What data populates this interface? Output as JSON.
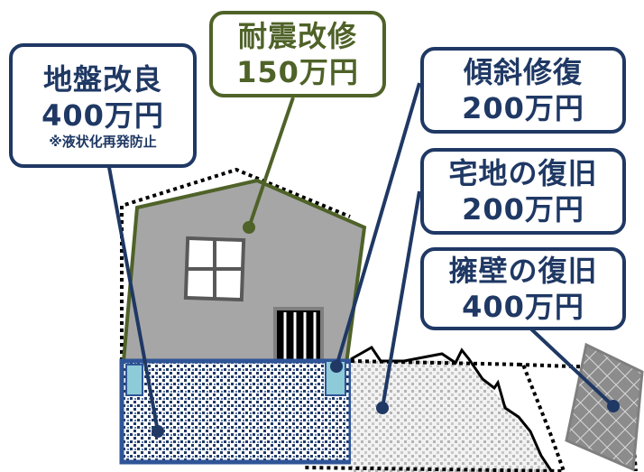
{
  "colors": {
    "navy": "#1f3864",
    "olive": "#4f6228",
    "house_wall": "#a6a6a6",
    "water_blue": "#8ecbd8",
    "soil_gray": "#d0d0d0"
  },
  "labels": {
    "ground": {
      "line1": "地盤改良",
      "line2": "400万円",
      "note": "※液状化再発防止"
    },
    "seismic": {
      "line1": "耐震改修",
      "line2": "150万円"
    },
    "tilt": {
      "line1": "傾斜修復",
      "line2": "200万円"
    },
    "land": {
      "line1": "宅地の復旧",
      "line2": "200万円"
    },
    "wall": {
      "line1": "擁壁の復旧",
      "line2": "400万円"
    }
  }
}
